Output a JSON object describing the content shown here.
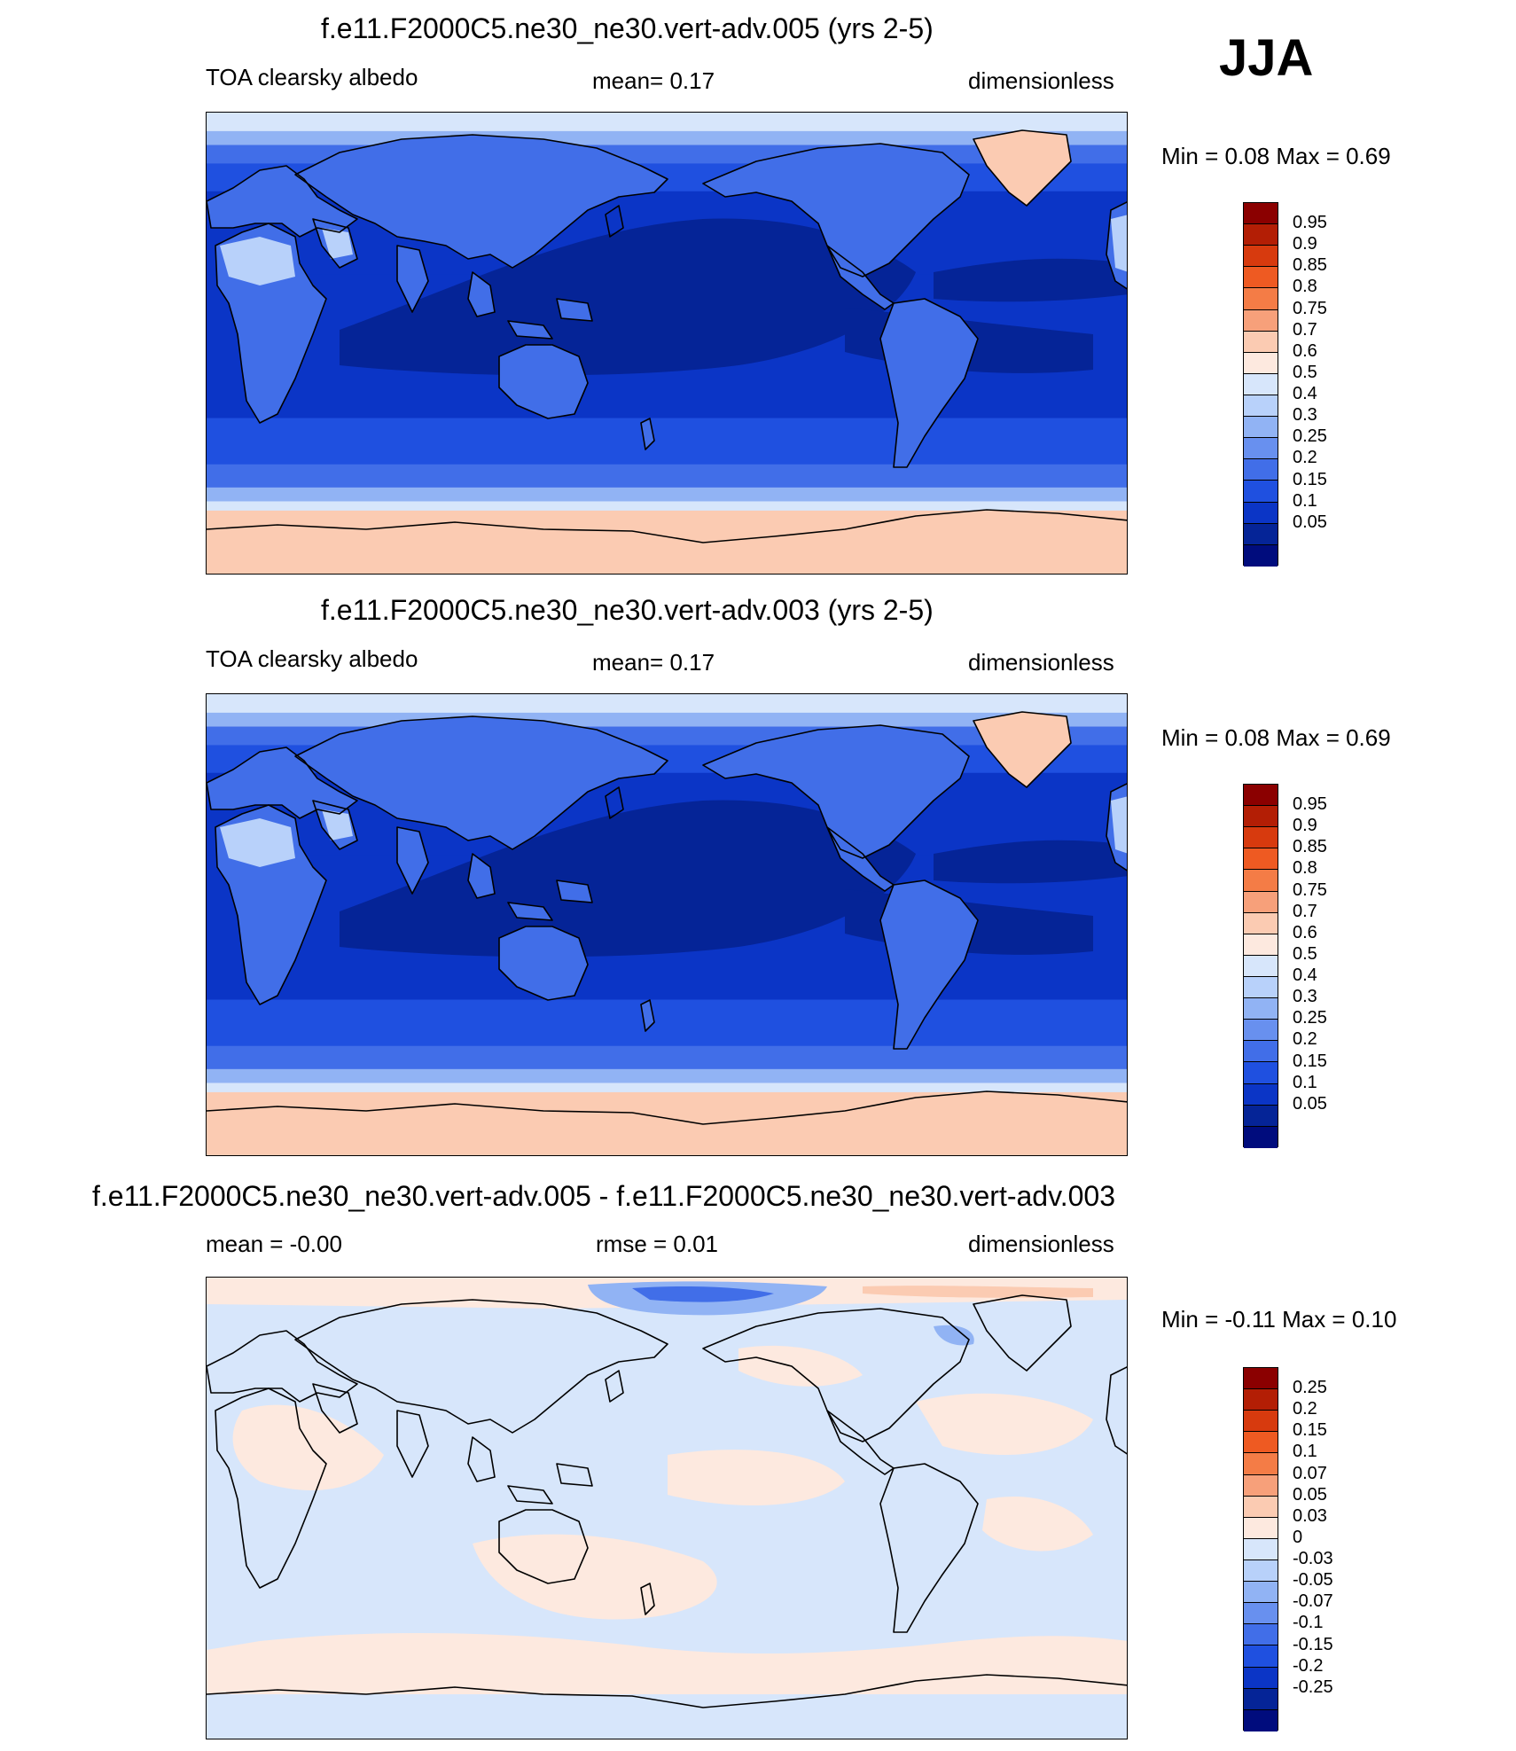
{
  "season": "JJA",
  "panels": [
    {
      "title": "f.e11.F2000C5.ne30_ne30.vert-adv.005 (yrs 2-5)",
      "left_label": "TOA clearsky albedo",
      "center_label": "mean=   0.17",
      "right_label": "dimensionless",
      "minmax": "Min =   0.08 Max =   0.69",
      "map_kind": "albedo",
      "colorbar": {
        "colors": [
          "#8b0000",
          "#b31e05",
          "#d73a0e",
          "#ee5a22",
          "#f47c46",
          "#f7a07a",
          "#fbcbb2",
          "#fde9df",
          "#d7e6fb",
          "#b8d1fa",
          "#91b3f4",
          "#6890ef",
          "#416ee8",
          "#1f50e0",
          "#0b35c6",
          "#052497",
          "#000c7d"
        ],
        "labels": [
          "0.95",
          "0.9",
          "0.85",
          "0.8",
          "0.75",
          "0.7",
          "0.6",
          "0.5",
          "0.4",
          "0.3",
          "0.25",
          "0.2",
          "0.15",
          "0.1",
          "0.05"
        ]
      }
    },
    {
      "title": "f.e11.F2000C5.ne30_ne30.vert-adv.003 (yrs 2-5)",
      "left_label": "TOA clearsky albedo",
      "center_label": "mean=   0.17",
      "right_label": "dimensionless",
      "minmax": "Min =   0.08 Max =   0.69",
      "map_kind": "albedo",
      "colorbar": {
        "colors": [
          "#8b0000",
          "#b31e05",
          "#d73a0e",
          "#ee5a22",
          "#f47c46",
          "#f7a07a",
          "#fbcbb2",
          "#fde9df",
          "#d7e6fb",
          "#b8d1fa",
          "#91b3f4",
          "#6890ef",
          "#416ee8",
          "#1f50e0",
          "#0b35c6",
          "#052497",
          "#000c7d"
        ],
        "labels": [
          "0.95",
          "0.9",
          "0.85",
          "0.8",
          "0.75",
          "0.7",
          "0.6",
          "0.5",
          "0.4",
          "0.3",
          "0.25",
          "0.2",
          "0.15",
          "0.1",
          "0.05"
        ]
      }
    },
    {
      "title": "f.e11.F2000C5.ne30_ne30.vert-adv.005 - f.e11.F2000C5.ne30_ne30.vert-adv.003",
      "left_label": "mean =  -0.00",
      "center_label": "rmse =   0.01",
      "right_label": "dimensionless",
      "minmax": "Min =  -0.11 Max =   0.10",
      "map_kind": "diff",
      "colorbar": {
        "colors": [
          "#8b0000",
          "#b31e05",
          "#d73a0e",
          "#ee5a22",
          "#f47c46",
          "#f7a07a",
          "#fbcbb2",
          "#fde9df",
          "#d7e6fb",
          "#b8d1fa",
          "#91b3f4",
          "#6890ef",
          "#416ee8",
          "#1f50e0",
          "#0b35c6",
          "#052497",
          "#000c7d"
        ],
        "labels": [
          "0.25",
          "0.2",
          "0.15",
          "0.1",
          "0.07",
          "0.05",
          "0.03",
          "0",
          "-0.03",
          "-0.05",
          "-0.07",
          "-0.1",
          "-0.15",
          "-0.2",
          "-0.25"
        ]
      }
    }
  ]
}
